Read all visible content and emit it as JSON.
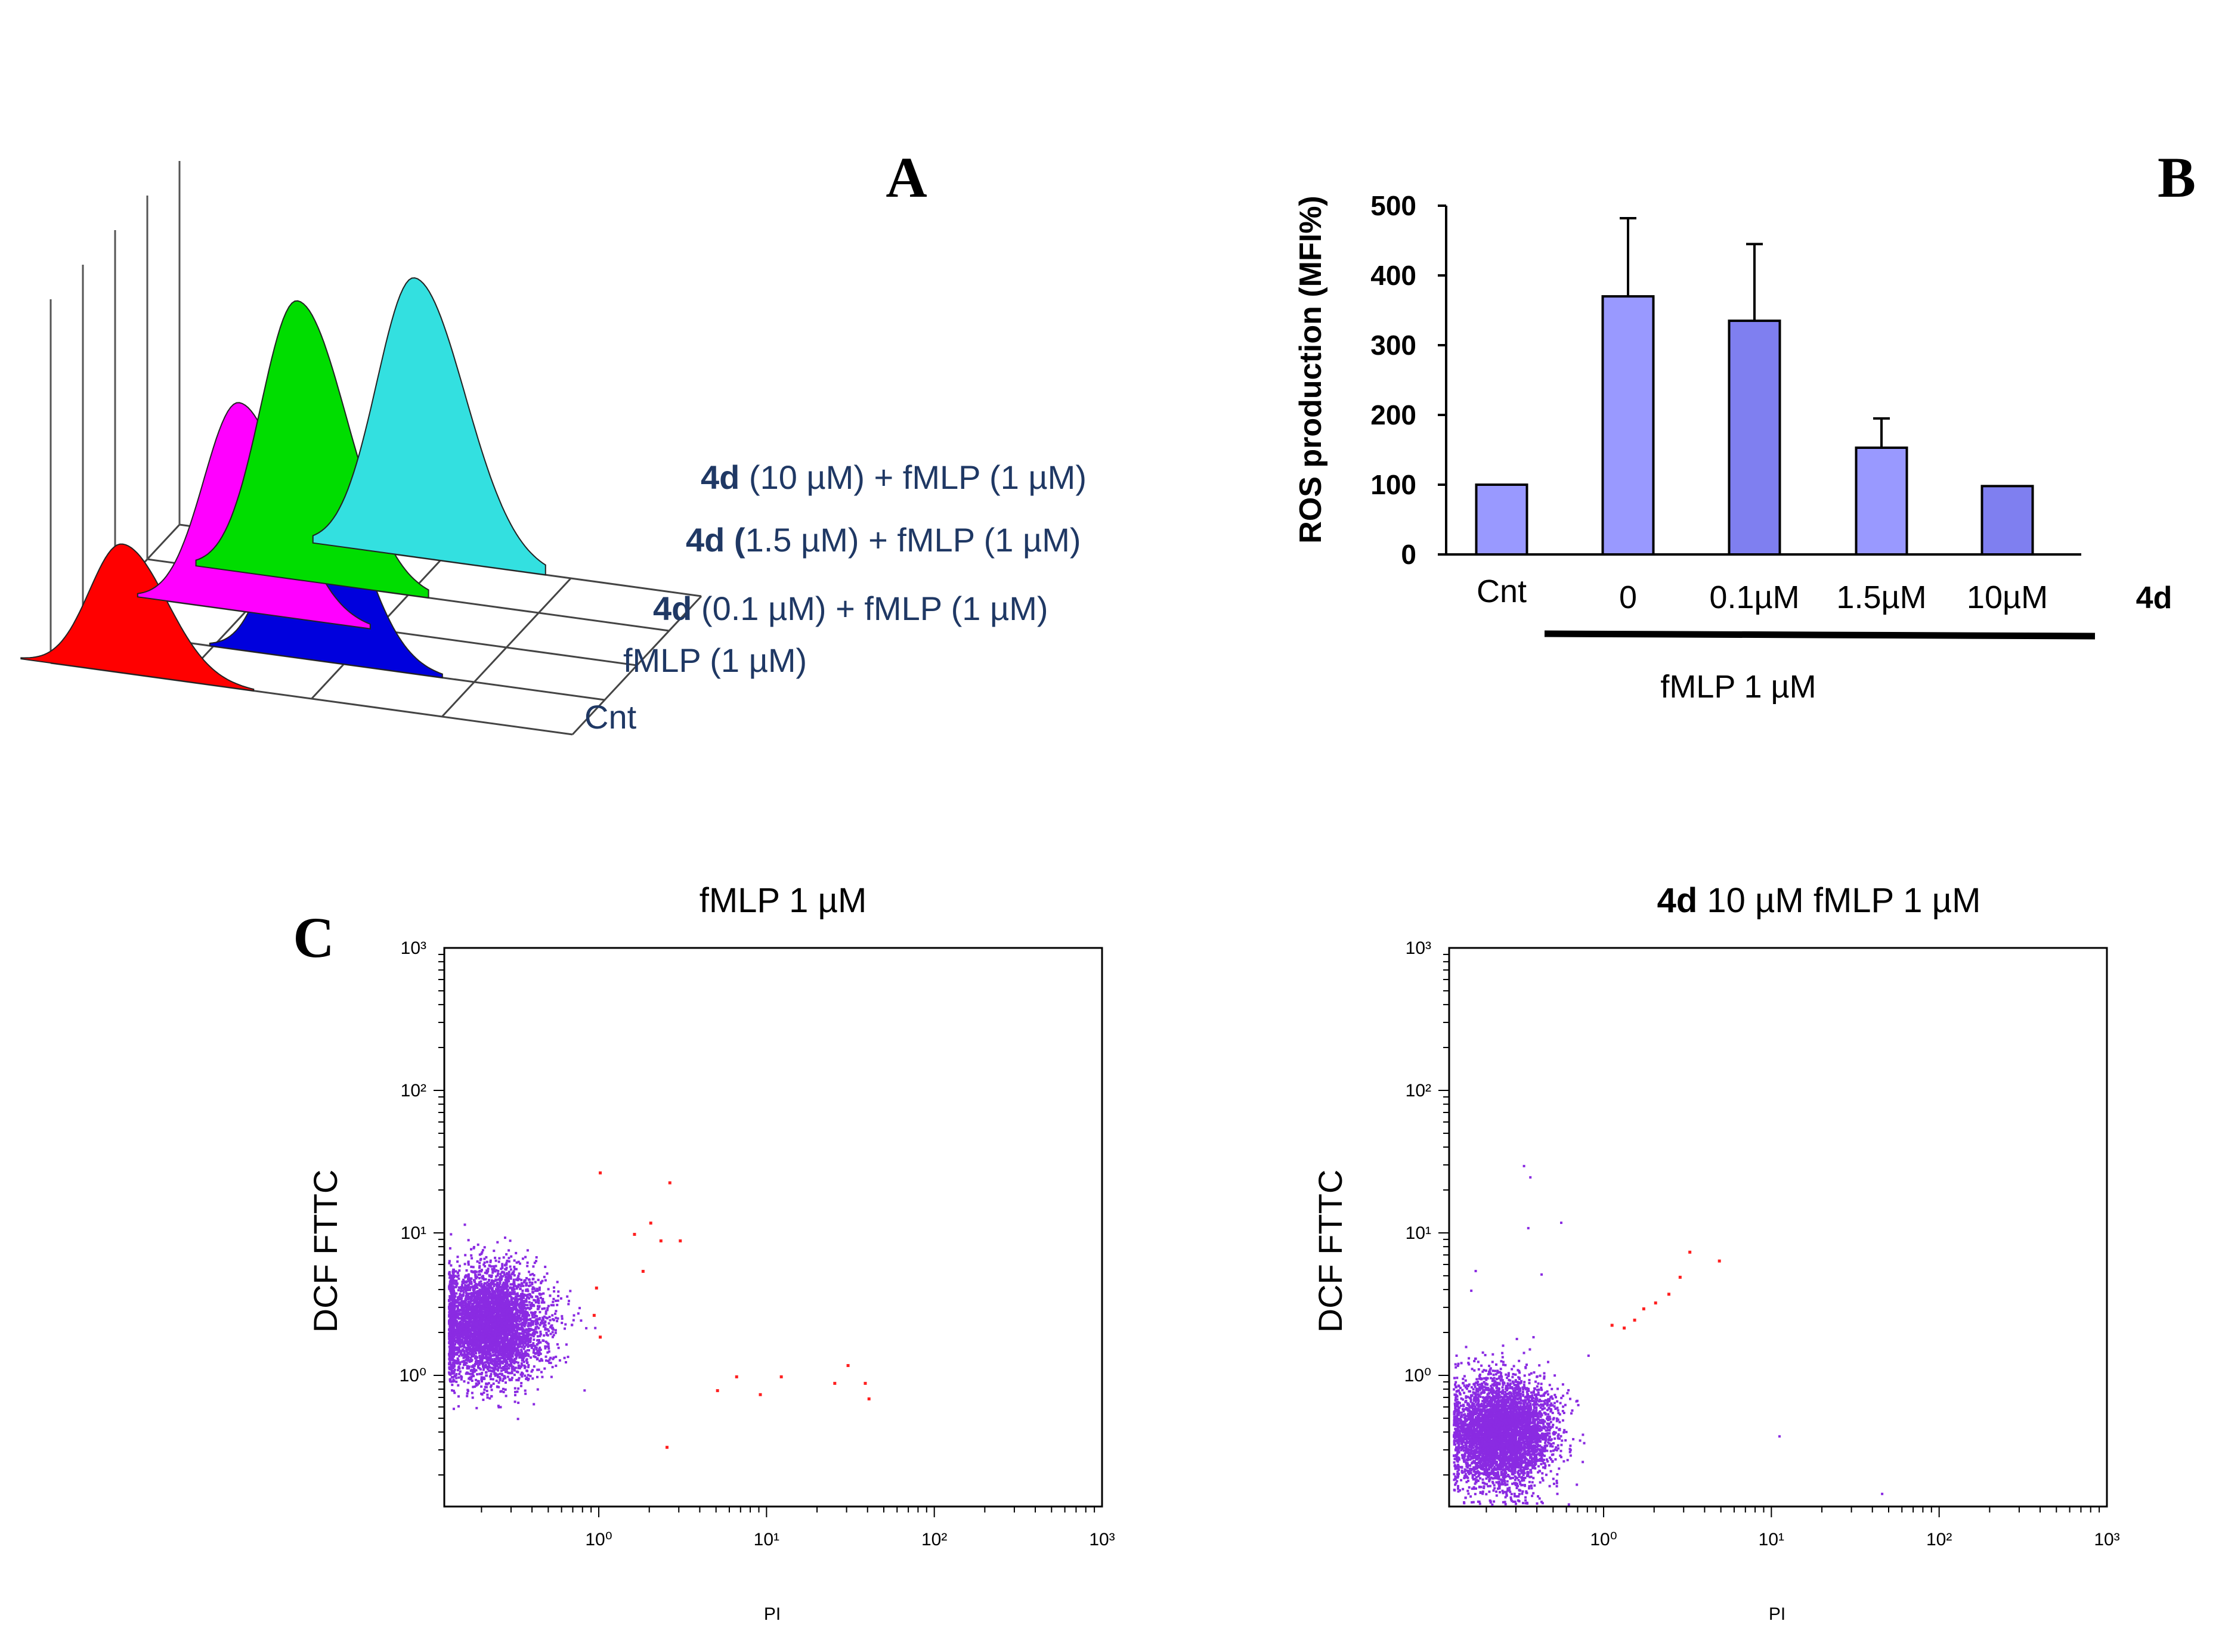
{
  "panels": {
    "A": {
      "letter": "A"
    },
    "B": {
      "letter": "B"
    },
    "C": {
      "letter": "C"
    }
  },
  "chart_data": [
    {
      "id": "A",
      "type": "area",
      "description_free": true,
      "series": [
        {
          "name": "Cnt",
          "label_bold": "",
          "label_rest": "Cnt",
          "color": "#FF0000",
          "peak_height": 0.6,
          "peak_position": 0.55
        },
        {
          "name": "fMLP (1 µM)",
          "label_bold": "",
          "label_rest": "fMLP (1 µM)",
          "color": "#0000DD",
          "peak_height": 1.0,
          "peak_position": 1.75
        },
        {
          "name": "4d (0.1 µM) + fMLP (1 µM)",
          "label_bold": "4d",
          "label_rest": "  (0.1 µM) + fMLP (1 µM)",
          "color": "#FF00FF",
          "peak_height": 0.97,
          "peak_position": 0.95
        },
        {
          "name": "4d (1.5 µM) + fMLP (1 µM)",
          "label_bold": "4d (",
          "label_rest": "1.5 µM) + fMLP (1 µM)",
          "color": "#00DD00",
          "peak_height": 1.3,
          "peak_position": 1.15
        },
        {
          "name": "4d (10 µM) + fMLP (1 µM)",
          "label_bold": "4d",
          "label_rest": " (10 µM) + fMLP (1 µM)",
          "color": "#33E0E0",
          "peak_height": 1.3,
          "peak_position": 1.8
        }
      ]
    },
    {
      "id": "B",
      "type": "bar",
      "title": "",
      "ylabel": "ROS production  (MFI%)",
      "xlabel": "",
      "ylim": [
        0,
        500
      ],
      "yticks": [
        0,
        100,
        200,
        300,
        400,
        500
      ],
      "categories": [
        "Cnt",
        "0",
        "0.1µM",
        "1.5µM",
        "10µM"
      ],
      "values": [
        100,
        370,
        335,
        153,
        98
      ],
      "errors": [
        0,
        112,
        110,
        42,
        0
      ],
      "colors": [
        "#9999FF",
        "#9999FF",
        "#7F7FF0",
        "#9999FF",
        "#7F7FF0"
      ],
      "compound_label": "4d",
      "group_label": "fMLP 1 µM"
    },
    {
      "id": "C1",
      "type": "scatter",
      "title": "fMLP 1 µM",
      "title_bold": "",
      "xlabel": "PI",
      "ylabel": "DCF FTTC",
      "xscale": "log",
      "yscale": "log",
      "xlim": [
        0.12,
        1000
      ],
      "ylim": [
        0.12,
        1000
      ],
      "xtick_labels": [
        "10⁰",
        "10¹",
        "10²",
        "10³"
      ],
      "ytick_labels": [
        "10⁰",
        "10¹",
        "10²",
        "10³"
      ],
      "cluster": {
        "center_x": 0.22,
        "center_y": 2.3,
        "spread_x": 0.33,
        "spread_y": 0.25,
        "color": "#8A2BE2"
      },
      "outliers": [
        {
          "x": 1.0,
          "y": 27
        },
        {
          "x": 2.6,
          "y": 23
        },
        {
          "x": 1.6,
          "y": 10
        },
        {
          "x": 2.0,
          "y": 12
        },
        {
          "x": 2.3,
          "y": 9
        },
        {
          "x": 3.0,
          "y": 9
        },
        {
          "x": 1.8,
          "y": 5.5
        },
        {
          "x": 0.95,
          "y": 4.2
        },
        {
          "x": 0.92,
          "y": 2.7
        },
        {
          "x": 1.0,
          "y": 1.9
        },
        {
          "x": 6.5,
          "y": 1.0
        },
        {
          "x": 12,
          "y": 1.0
        },
        {
          "x": 30,
          "y": 1.2
        },
        {
          "x": 38,
          "y": 0.9
        },
        {
          "x": 5.0,
          "y": 0.8
        },
        {
          "x": 25,
          "y": 0.9
        },
        {
          "x": 40,
          "y": 0.7
        },
        {
          "x": 2.5,
          "y": 0.32
        },
        {
          "x": 9,
          "y": 0.75
        }
      ],
      "outlier_color": "#FF2020"
    },
    {
      "id": "C2",
      "type": "scatter",
      "title": " 10 µM fMLP 1 µM",
      "title_bold": "4d",
      "xlabel": "PI",
      "ylabel": "DCF FTTC",
      "xscale": "log",
      "yscale": "log",
      "xlim": [
        0.12,
        1000
      ],
      "ylim": [
        0.12,
        1000
      ],
      "xtick_labels": [
        "10⁰",
        "10¹",
        "10²",
        "10³"
      ],
      "ytick_labels": [
        "10⁰",
        "10¹",
        "10²",
        "10³"
      ],
      "cluster": {
        "center_x": 0.24,
        "center_y": 0.4,
        "spread_x": 0.3,
        "spread_y": 0.25,
        "color": "#8A2BE2"
      },
      "outliers": [
        {
          "x": 1.1,
          "y": 2.3
        },
        {
          "x": 1.3,
          "y": 2.2
        },
        {
          "x": 1.5,
          "y": 2.5
        },
        {
          "x": 2.0,
          "y": 3.3
        },
        {
          "x": 2.4,
          "y": 3.8
        },
        {
          "x": 2.8,
          "y": 5.0
        },
        {
          "x": 3.2,
          "y": 7.5
        },
        {
          "x": 4.8,
          "y": 6.5
        },
        {
          "x": 1.7,
          "y": 3.0
        }
      ],
      "outlier_color": "#FF2020",
      "extra_points": [
        {
          "x": 0.33,
          "y": 30
        },
        {
          "x": 0.36,
          "y": 25
        },
        {
          "x": 0.55,
          "y": 12
        },
        {
          "x": 0.35,
          "y": 11
        },
        {
          "x": 0.17,
          "y": 5.5
        },
        {
          "x": 0.16,
          "y": 4.0
        },
        {
          "x": 0.42,
          "y": 5.2
        },
        {
          "x": 11,
          "y": 0.38
        },
        {
          "x": 45,
          "y": 0.15
        },
        {
          "x": 0.8,
          "y": 1.4
        }
      ]
    }
  ]
}
